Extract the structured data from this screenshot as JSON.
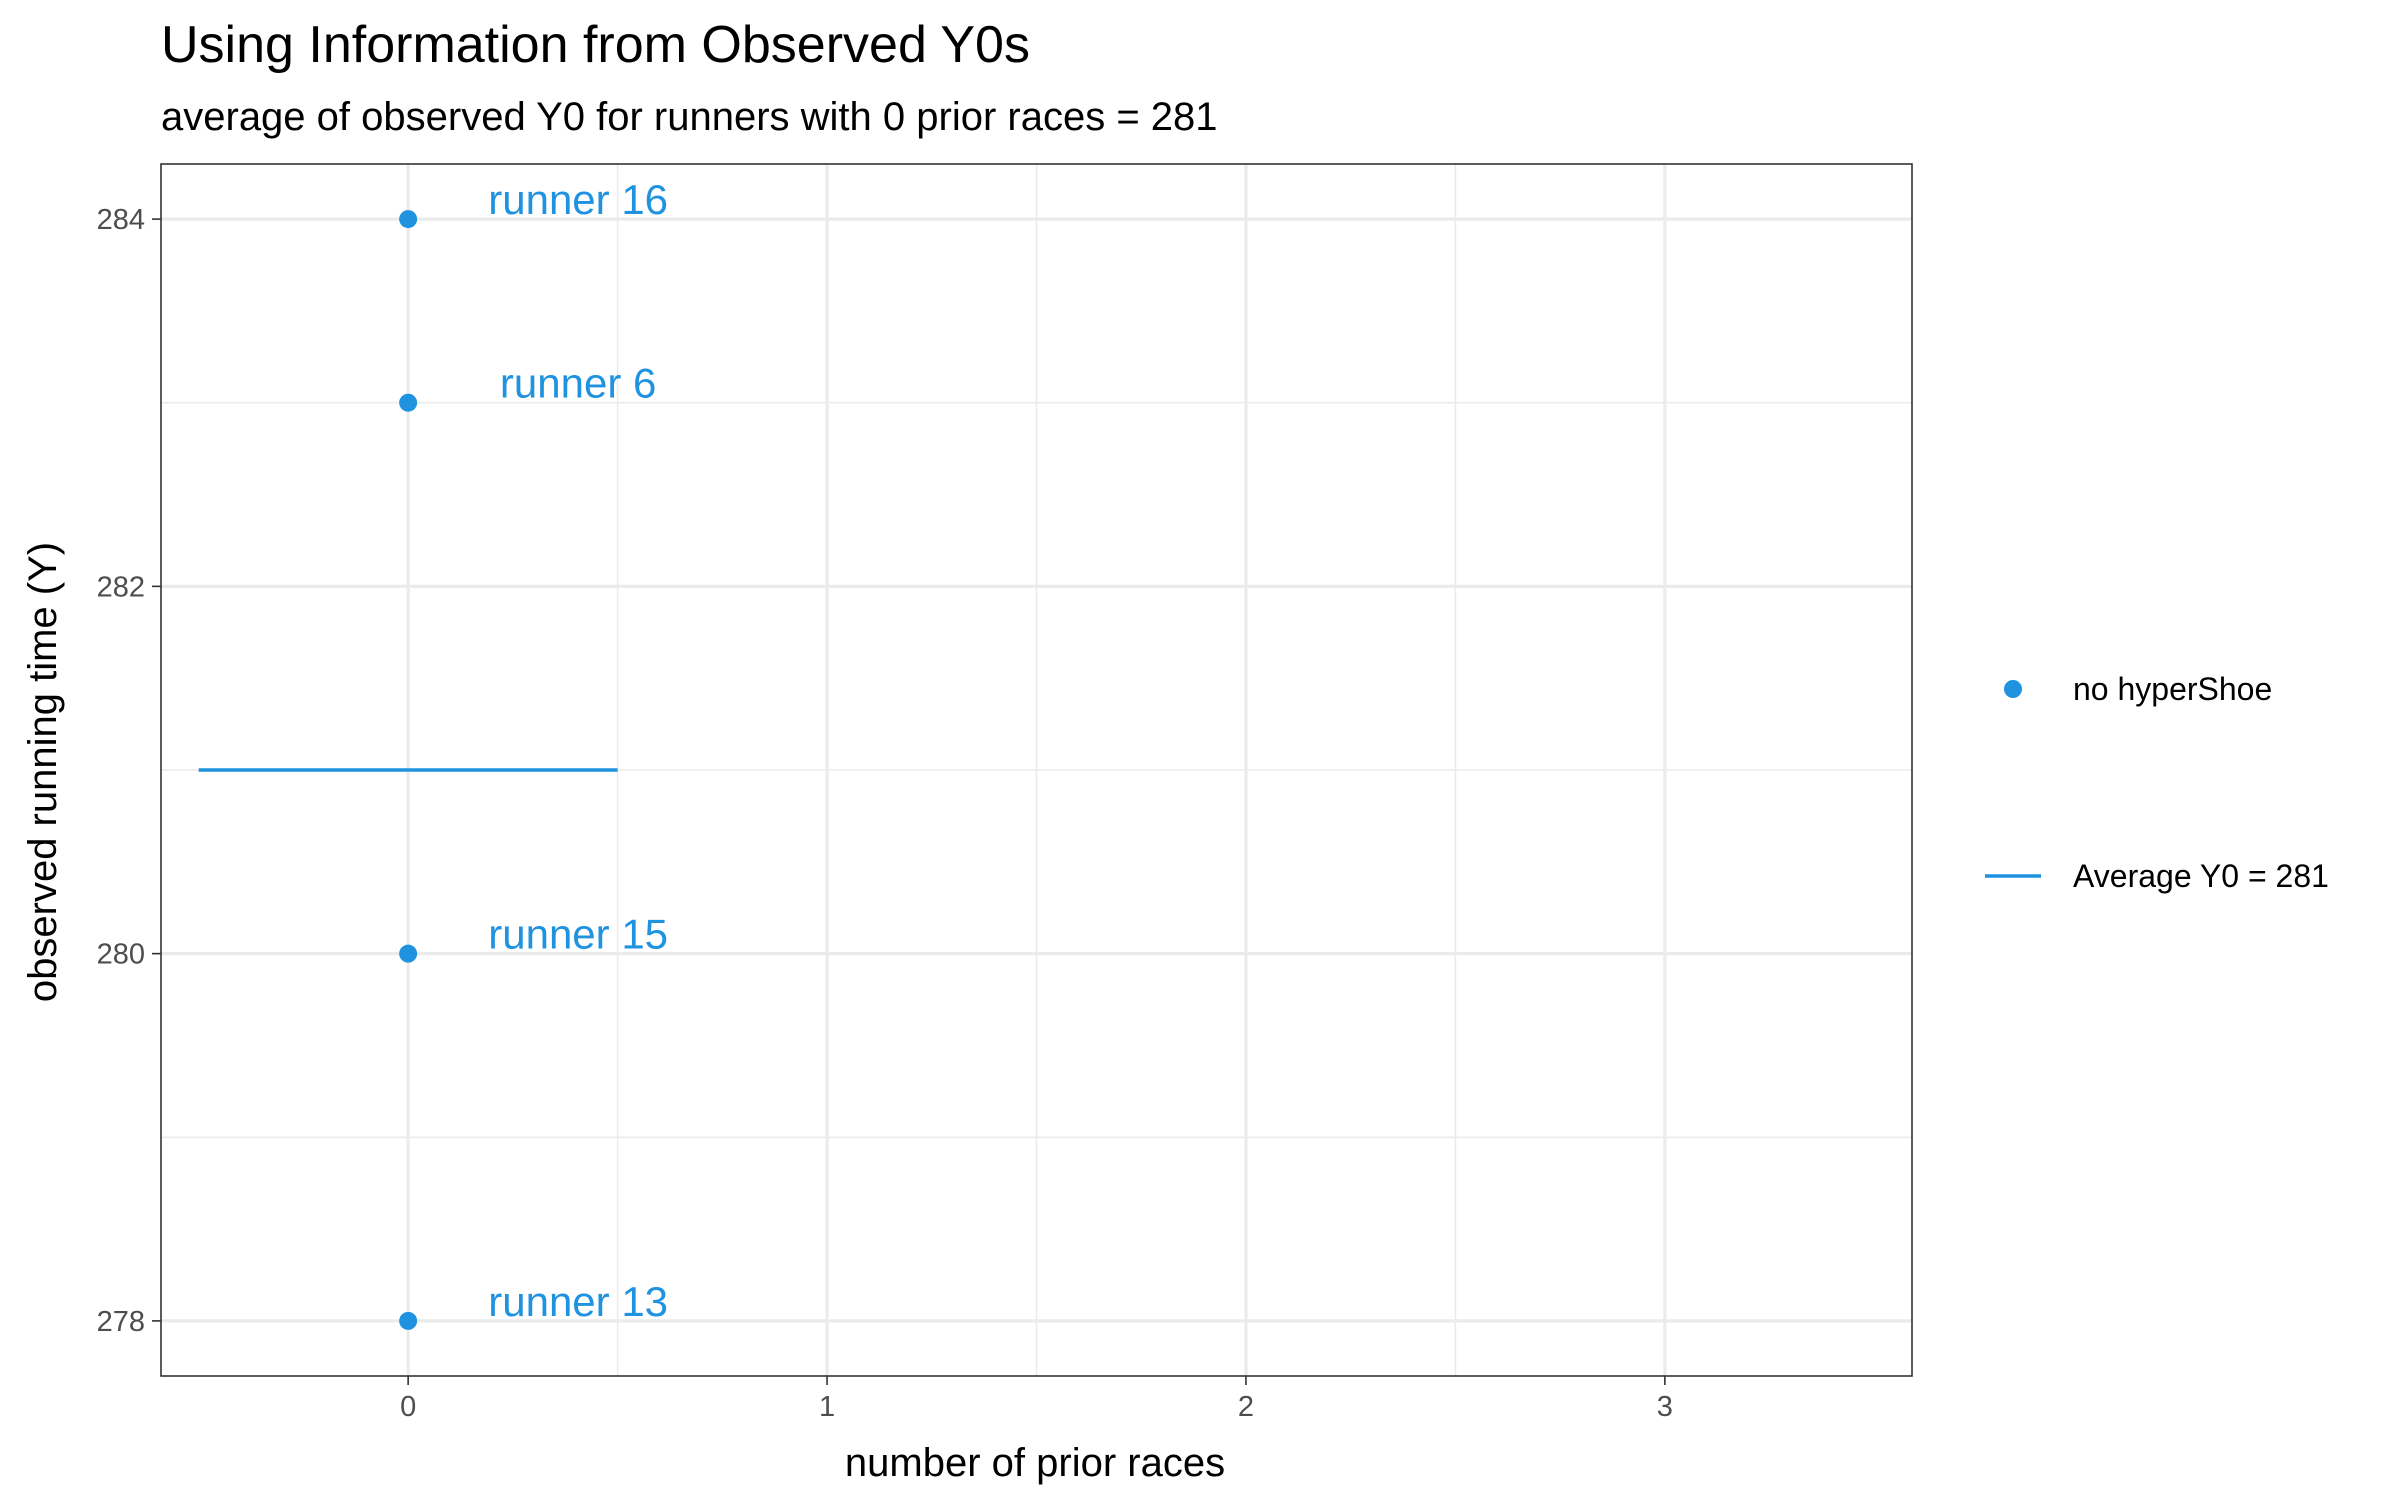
{
  "chart_data": {
    "type": "scatter",
    "title": "Using Information from Observed Y0s",
    "subtitle": "average of observed Y0 for runners with 0 prior races = 281",
    "xlabel": "number of prior races",
    "ylabel": "observed running time (Y)",
    "xlim": [
      -0.59,
      3.59
    ],
    "ylim": [
      277.7,
      284.3
    ],
    "x_ticks": [
      0,
      1,
      2,
      3
    ],
    "y_ticks": [
      278,
      280,
      282,
      284
    ],
    "grid": true,
    "legend_position": "right",
    "series": [
      {
        "name": "no hyperShoe",
        "color": "#1f93e0",
        "points": [
          {
            "x": 0,
            "y": 284,
            "label": "runner 16"
          },
          {
            "x": 0,
            "y": 283,
            "label": "runner 6"
          },
          {
            "x": 0,
            "y": 280,
            "label": "runner 15"
          },
          {
            "x": 0,
            "y": 278,
            "label": "runner 13"
          }
        ]
      }
    ],
    "average_line": {
      "name": "Average Y0 = 281",
      "y": 281,
      "x_start": -0.5,
      "x_end": 0.5,
      "color": "#1f93e0"
    }
  }
}
